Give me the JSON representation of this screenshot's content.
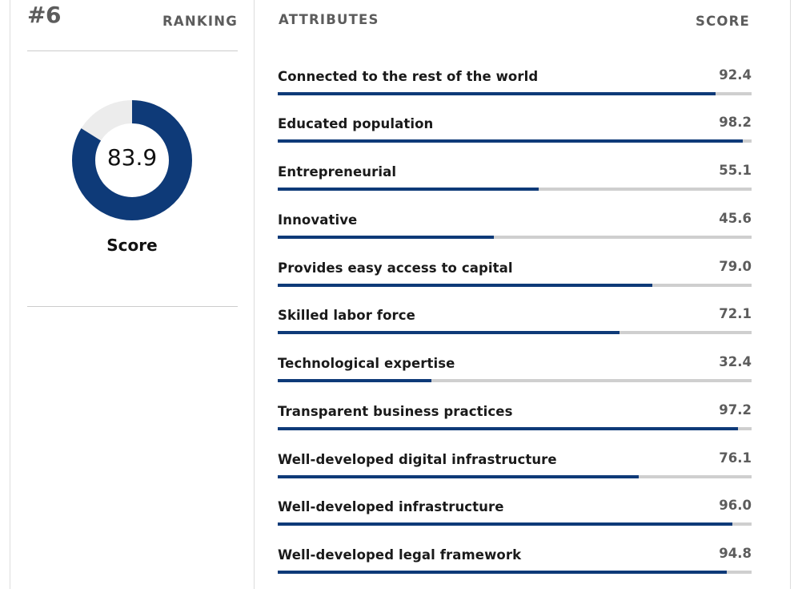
{
  "ranking": {
    "value": "#6",
    "label": "RANKING"
  },
  "overall": {
    "score": "83.9",
    "fraction": 0.839,
    "caption": "Score"
  },
  "headers": {
    "attributes": "ATTRIBUTES",
    "score": "SCORE"
  },
  "colors": {
    "accent": "#0e3a78",
    "track": "#cfcfcf",
    "donut_remainder": "#ececec"
  },
  "attributes": [
    {
      "name": "Connected to the rest of the world",
      "score": "92.4",
      "fraction": 0.924
    },
    {
      "name": "Educated population",
      "score": "98.2",
      "fraction": 0.982
    },
    {
      "name": "Entrepreneurial",
      "score": "55.1",
      "fraction": 0.551
    },
    {
      "name": "Innovative",
      "score": "45.6",
      "fraction": 0.456
    },
    {
      "name": "Provides easy access to capital",
      "score": "79.0",
      "fraction": 0.79
    },
    {
      "name": "Skilled labor force",
      "score": "72.1",
      "fraction": 0.721
    },
    {
      "name": "Technological expertise",
      "score": "32.4",
      "fraction": 0.324
    },
    {
      "name": "Transparent business practices",
      "score": "97.2",
      "fraction": 0.972
    },
    {
      "name": "Well-developed digital infrastructure",
      "score": "76.1",
      "fraction": 0.761
    },
    {
      "name": "Well-developed infrastructure",
      "score": "96.0",
      "fraction": 0.96
    },
    {
      "name": "Well-developed legal framework",
      "score": "94.8",
      "fraction": 0.948
    }
  ]
}
